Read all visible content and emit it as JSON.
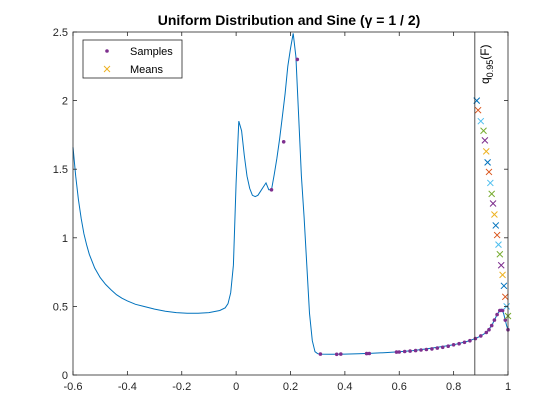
{
  "chart_data": {
    "type": "line",
    "title": "Uniform Distribution and Sine  (γ = 1 / 2)",
    "xlabel": "",
    "ylabel": "",
    "xlim": [
      -0.6,
      1.0
    ],
    "ylim": [
      0,
      2.5
    ],
    "x_ticks": [
      -0.6,
      -0.4,
      -0.2,
      0,
      0.2,
      0.4,
      0.6,
      0.8,
      1
    ],
    "x_tick_labels": [
      "-0.6",
      "-0.4",
      "-0.2",
      "0",
      "0.2",
      "0.4",
      "0.6",
      "0.8",
      "1"
    ],
    "y_ticks": [
      0,
      0.5,
      1,
      1.5,
      2,
      2.5
    ],
    "y_tick_labels": [
      "0",
      "0.5",
      "1",
      "1.5",
      "2",
      "2.5"
    ],
    "grid": false,
    "legend": {
      "placement": "top-left",
      "entries": [
        {
          "label": "Samples",
          "marker": "dot",
          "color": "#7e2f8e"
        },
        {
          "label": "Means",
          "marker": "x",
          "color": "#edb120"
        }
      ]
    },
    "line_color": "#0072bd",
    "curve": {
      "x": [
        -0.6,
        -0.59,
        -0.58,
        -0.57,
        -0.56,
        -0.55,
        -0.54,
        -0.52,
        -0.5,
        -0.48,
        -0.46,
        -0.44,
        -0.42,
        -0.4,
        -0.37,
        -0.34,
        -0.3,
        -0.26,
        -0.22,
        -0.18,
        -0.14,
        -0.1,
        -0.06,
        -0.04,
        -0.03,
        -0.02,
        -0.01,
        0.0,
        0.01,
        0.02,
        0.03,
        0.04,
        0.05,
        0.06,
        0.07,
        0.08,
        0.09,
        0.1,
        0.11,
        0.12,
        0.13,
        0.14,
        0.15,
        0.16,
        0.17,
        0.18,
        0.19,
        0.2,
        0.21,
        0.22,
        0.23,
        0.24,
        0.25,
        0.26,
        0.27,
        0.28,
        0.29,
        0.3,
        0.31,
        0.35,
        0.4,
        0.45,
        0.5,
        0.55,
        0.6,
        0.65,
        0.7,
        0.75,
        0.8,
        0.85,
        0.88,
        0.9,
        0.92,
        0.94,
        0.95,
        0.96,
        0.97,
        0.975,
        0.98,
        0.985,
        0.99,
        0.995,
        1.0
      ],
      "y": [
        1.66,
        1.45,
        1.28,
        1.14,
        1.03,
        0.95,
        0.88,
        0.78,
        0.71,
        0.66,
        0.62,
        0.585,
        0.56,
        0.54,
        0.515,
        0.5,
        0.48,
        0.465,
        0.455,
        0.45,
        0.45,
        0.455,
        0.47,
        0.49,
        0.52,
        0.6,
        0.8,
        1.4,
        1.85,
        1.78,
        1.6,
        1.45,
        1.36,
        1.31,
        1.3,
        1.31,
        1.34,
        1.37,
        1.4,
        1.35,
        1.35,
        1.46,
        1.58,
        1.72,
        1.88,
        2.05,
        2.25,
        2.38,
        2.49,
        2.32,
        1.88,
        1.45,
        1.15,
        0.8,
        0.45,
        0.25,
        0.17,
        0.155,
        0.152,
        0.151,
        0.152,
        0.155,
        0.158,
        0.163,
        0.17,
        0.178,
        0.19,
        0.205,
        0.22,
        0.245,
        0.265,
        0.285,
        0.31,
        0.36,
        0.4,
        0.44,
        0.47,
        0.48,
        0.47,
        0.44,
        0.4,
        0.36,
        0.33
      ]
    },
    "samples": {
      "x": [
        0.13,
        0.175,
        0.225,
        0.31,
        0.37,
        0.385,
        0.48,
        0.49,
        0.59,
        0.6,
        0.62,
        0.64,
        0.66,
        0.68,
        0.7,
        0.72,
        0.74,
        0.76,
        0.78,
        0.8,
        0.82,
        0.84,
        0.86,
        0.88,
        0.9,
        0.92,
        0.93,
        0.94,
        0.95,
        0.96,
        0.97,
        0.98,
        0.99,
        1.0
      ],
      "y": [
        1.35,
        1.7,
        2.3,
        0.152,
        0.151,
        0.152,
        0.156,
        0.157,
        0.167,
        0.168,
        0.171,
        0.174,
        0.178,
        0.182,
        0.186,
        0.19,
        0.196,
        0.202,
        0.21,
        0.22,
        0.228,
        0.238,
        0.25,
        0.265,
        0.285,
        0.31,
        0.33,
        0.36,
        0.4,
        0.44,
        0.47,
        0.47,
        0.4,
        0.33
      ]
    },
    "means": {
      "x": [
        0.885,
        0.89,
        0.9,
        0.91,
        0.915,
        0.92,
        0.925,
        0.93,
        0.935,
        0.94,
        0.945,
        0.95,
        0.955,
        0.96,
        0.965,
        0.97,
        0.975,
        0.98,
        0.985,
        0.99,
        0.995,
        1.0
      ],
      "y": [
        2.0,
        1.93,
        1.85,
        1.78,
        1.71,
        1.63,
        1.55,
        1.48,
        1.4,
        1.32,
        1.25,
        1.17,
        1.09,
        1.02,
        0.95,
        0.88,
        0.8,
        0.73,
        0.65,
        0.57,
        0.5,
        0.43
      ],
      "colors": [
        "#0072bd",
        "#d95319",
        "#4dbeee",
        "#77ac30",
        "#7e2f8e",
        "#edb120"
      ]
    },
    "vline": {
      "x": 0.878,
      "label_main": "q",
      "label_sub": "0.95",
      "label_tail": "(F)"
    }
  }
}
